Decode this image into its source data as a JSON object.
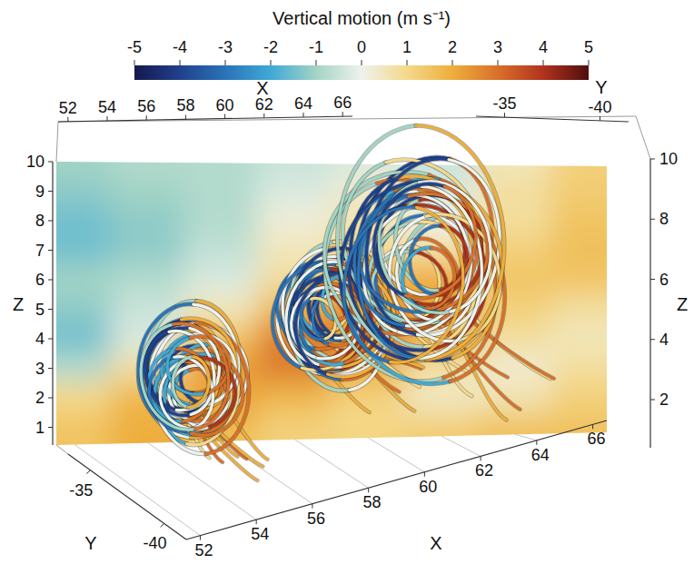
{
  "chart_data": {
    "type": "streamlines3d",
    "colorbar": {
      "title": "Vertical motion (m s⁻¹)",
      "range": [
        -5,
        5
      ],
      "ticks": [
        -5,
        -4,
        -3,
        -2,
        -1,
        0,
        1,
        2,
        3,
        4,
        5
      ],
      "colors": [
        "#16184e",
        "#20418c",
        "#2a73b8",
        "#3fa9d6",
        "#a3d4c5",
        "#eef2ec",
        "#f4d98a",
        "#eeae3c",
        "#d9702a",
        "#b0331d",
        "#4f0d0f"
      ]
    },
    "axes": [
      {
        "title": "X",
        "lim": [
          51.5,
          66.5
        ],
        "ticks": [
          52,
          54,
          56,
          58,
          60,
          62,
          64,
          66
        ]
      },
      {
        "title": "Y",
        "lim": [
          -41.5,
          -33.5
        ],
        "ticks": [
          -35,
          -40
        ]
      },
      {
        "title": "Z",
        "lim": [
          0.4,
          10
        ],
        "ticks": [
          1,
          2,
          3,
          4,
          5,
          6,
          7,
          8,
          9,
          10
        ]
      },
      {
        "title": "Z",
        "lim": [
          0.4,
          10
        ],
        "ticks": [
          2,
          4,
          6,
          8,
          10
        ]
      },
      {
        "title": "Y",
        "lim": [
          -41.5,
          -33.5
        ],
        "ticks": [
          -35,
          -40
        ]
      },
      {
        "title": "X",
        "lim": [
          51.5,
          66.5
        ],
        "ticks": [
          52,
          54,
          56,
          58,
          60,
          62,
          64,
          66
        ]
      }
    ],
    "field": {
      "x": [
        52,
        54,
        56,
        58,
        60,
        62,
        64,
        66
      ],
      "z": [
        10,
        9,
        8,
        7,
        6,
        5,
        4,
        3,
        2,
        1,
        0
      ],
      "values": [
        [
          -1.0,
          -0.8,
          -0.8,
          -0.5,
          -0.3,
          -0.5,
          0.5,
          1.2
        ],
        [
          -1.2,
          -1.0,
          -0.8,
          -0.3,
          0.3,
          -0.3,
          0.8,
          1.3
        ],
        [
          -1.5,
          -1.2,
          -0.8,
          0.2,
          0.6,
          0.0,
          0.8,
          1.5
        ],
        [
          -1.5,
          -1.2,
          -0.6,
          0.5,
          0.8,
          0.8,
          1.2,
          1.6
        ],
        [
          -1.0,
          -0.8,
          -0.3,
          0.8,
          1.8,
          2.0,
          1.5,
          1.5
        ],
        [
          -1.2,
          -0.5,
          0.5,
          1.8,
          2.5,
          2.2,
          1.2,
          0.8
        ],
        [
          -1.5,
          -0.3,
          1.5,
          2.8,
          3.0,
          1.8,
          0.8,
          0.5
        ],
        [
          -0.8,
          0.8,
          2.2,
          2.8,
          2.0,
          0.8,
          0.3,
          0.8
        ],
        [
          1.0,
          1.8,
          2.2,
          1.8,
          1.2,
          0.4,
          0.6,
          1.2
        ],
        [
          1.5,
          2.0,
          1.8,
          1.2,
          1.0,
          1.2,
          1.5,
          1.5
        ],
        [
          1.5,
          2.0,
          1.5,
          1.2,
          1.2,
          1.5,
          1.8,
          1.8
        ]
      ]
    },
    "vortices": {
      "x": [
        55.2,
        59.0,
        61.5
      ],
      "z": [
        2.6,
        4.9,
        6.5
      ],
      "size": [
        2.8,
        3.0,
        4.7
      ]
    }
  }
}
